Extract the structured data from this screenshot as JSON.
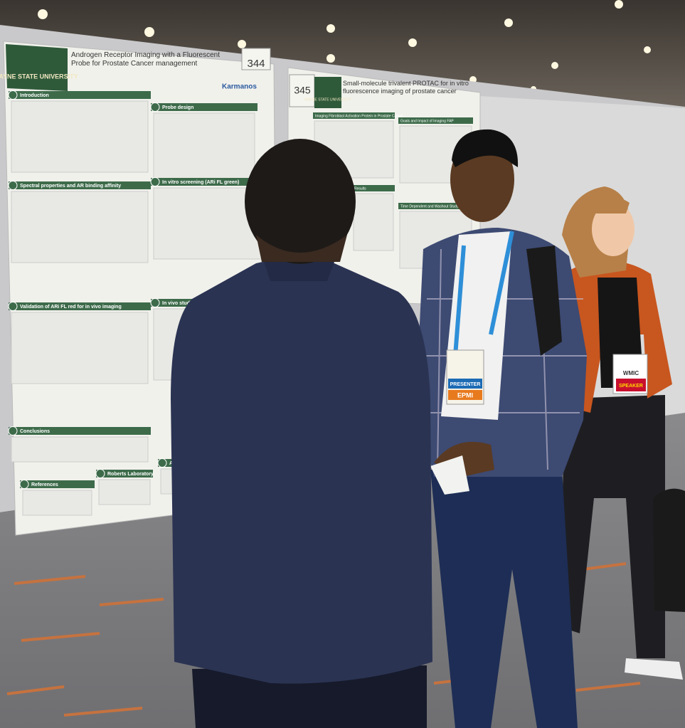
{
  "poster_left": {
    "number": "344",
    "logo": "WAYNE STATE UNIVERSITY",
    "title": "Androgen Receptor Imaging with a Fluorescent Probe for Prostate Cancer management",
    "partner": "Karmanos",
    "sections": [
      "Introduction",
      "Probe design",
      "Spectral properties and AR binding affinity",
      "In vitro screening (ARi FL green)",
      "Validation of ARi FL red for in vivo imaging",
      "In vivo studies",
      "Conclusions",
      "References",
      "Roberts Laboratory",
      "Acknowledgements"
    ]
  },
  "poster_right": {
    "number": "345",
    "logo": "WAYNE STATE UNIVERSITY",
    "title": "Small-molecule trivalent PROTAC for in vitro fluorescence imaging of prostate cancer",
    "sections": [
      "Imaging Fibroblast Activation Protein in Prostate Cancer",
      "Goals and Impact of Imaging FAP",
      "Results",
      "Time Dependent and Washout Study"
    ]
  },
  "badges": {
    "presenter": "PRESENTER",
    "event": "EPMI",
    "wmic": "WMIC",
    "speaker": "SPEAKER"
  }
}
